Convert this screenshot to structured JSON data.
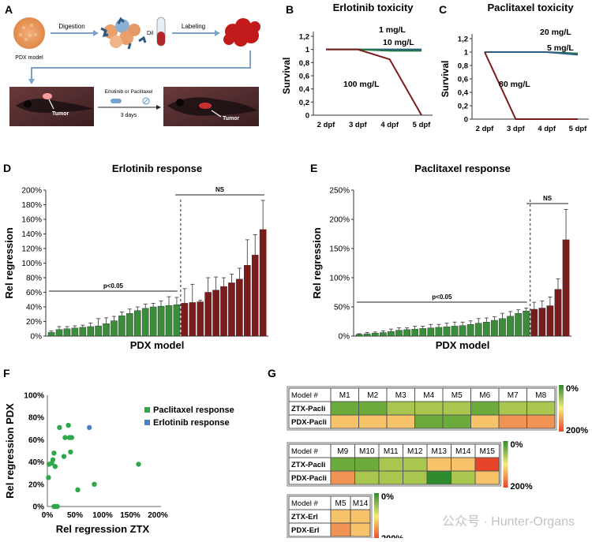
{
  "panels": {
    "A": {
      "label": "A",
      "pdx_model": "PDX model",
      "digestion": "Digestion",
      "dil": "DiI",
      "labeling": "Labeling",
      "treatment": "Erlotinib or Paclitaxel",
      "duration": "3 days",
      "tumor_left": "Tumor",
      "tumor_right": "Tumor"
    },
    "B": {
      "label": "B"
    },
    "C": {
      "label": "C"
    },
    "D": {
      "label": "D"
    },
    "E": {
      "label": "E"
    },
    "F": {
      "label": "F"
    },
    "G": {
      "label": "G"
    }
  },
  "colors": {
    "green": "#3a8e3a",
    "red": "#7b1c1c",
    "darkgreen": "#1f7a3f",
    "blue": "#4a7fc0"
  },
  "chart_data": [
    {
      "id": "B",
      "type": "line",
      "title": "Erlotinib toxicity",
      "xlabel": "",
      "ylabel": "Survival",
      "categories": [
        "2 dpf",
        "3 dpf",
        "4 dpf",
        "5 dpf"
      ],
      "yticks": [
        "0",
        "0,2",
        "0,4",
        "0,6",
        "0,8",
        "1",
        "1,2"
      ],
      "ylim": [
        0,
        1.2
      ],
      "series": [
        {
          "name": "1 mg/L",
          "values": [
            1,
            1,
            1,
            1
          ]
        },
        {
          "name": "10 mg/L",
          "values": [
            1,
            1,
            0.98,
            0.98
          ]
        },
        {
          "name": "100 mg/L",
          "values": [
            1,
            1,
            0.85,
            0
          ]
        }
      ]
    },
    {
      "id": "C",
      "type": "line",
      "title": "Paclitaxel toxicity",
      "xlabel": "",
      "ylabel": "Survival",
      "categories": [
        "2 dpf",
        "3 dpf",
        "4 dpf",
        "5 dpf"
      ],
      "yticks": [
        "0",
        "0,2",
        "0,4",
        "0,6",
        "0,8",
        "1",
        "1,2"
      ],
      "ylim": [
        0,
        1.2
      ],
      "series": [
        {
          "name": "20 mg/L",
          "values": [
            1,
            1,
            1,
            0.98
          ]
        },
        {
          "name": "5 mg/L",
          "values": [
            1,
            1,
            1,
            0.96
          ]
        },
        {
          "name": "80 mg/L",
          "values": [
            1,
            0,
            0,
            0
          ]
        }
      ]
    },
    {
      "id": "D",
      "type": "bar",
      "title": "Erlotinib response",
      "xlabel": "PDX model",
      "ylabel": "Rel regression",
      "yticks": [
        "0%",
        "20%",
        "40%",
        "60%",
        "80%",
        "100%",
        "120%",
        "140%",
        "160%",
        "180%",
        "200%"
      ],
      "ylim": [
        0,
        200
      ],
      "values": [
        5,
        9,
        10,
        11,
        12,
        13,
        14,
        17,
        21,
        28,
        31,
        35,
        38,
        40,
        41,
        42,
        43,
        45,
        46,
        47,
        60,
        63,
        68,
        73,
        78,
        97,
        111,
        146
      ],
      "errors": [
        2,
        4,
        3,
        3,
        3,
        5,
        10,
        8,
        6,
        5,
        6,
        5,
        6,
        5,
        7,
        12,
        10,
        20,
        25,
        2,
        20,
        18,
        12,
        12,
        15,
        35,
        28,
        40
      ],
      "sensitive_count": 17,
      "annotations": [
        "p<0.05",
        "NS"
      ]
    },
    {
      "id": "E",
      "type": "bar",
      "title": "Paclitaxel response",
      "xlabel": "PDX model",
      "ylabel": "Rel regression",
      "yticks": [
        "0%",
        "50%",
        "100%",
        "150%",
        "200%",
        "250%"
      ],
      "ylim": [
        0,
        250
      ],
      "values": [
        3,
        4,
        5,
        6,
        8,
        10,
        11,
        12,
        13,
        14,
        15,
        16,
        17,
        18,
        20,
        22,
        24,
        27,
        30,
        34,
        39,
        43,
        46,
        48,
        52,
        80,
        165
      ],
      "errors": [
        1,
        2,
        2,
        3,
        4,
        4,
        3,
        5,
        4,
        6,
        5,
        6,
        7,
        6,
        6,
        8,
        7,
        6,
        9,
        8,
        6,
        5,
        12,
        12,
        15,
        18,
        52
      ],
      "sensitive_count": 22,
      "annotations": [
        "p<0.05",
        "NS"
      ]
    },
    {
      "id": "F",
      "type": "scatter",
      "xlabel": "Rel regression ZTX",
      "ylabel": "Rel regression PDX",
      "xticks": [
        "0%",
        "50%",
        "100%",
        "150%",
        "200%"
      ],
      "yticks": [
        "0%",
        "20%",
        "40%",
        "60%",
        "80%",
        "100%"
      ],
      "xlim": [
        0,
        200
      ],
      "ylim": [
        0,
        100
      ],
      "series": [
        {
          "name": "Paclitaxel response",
          "points": [
            [
              2,
              26
            ],
            [
              3,
              38
            ],
            [
              8,
              39
            ],
            [
              10,
              42
            ],
            [
              12,
              48
            ],
            [
              12,
              0
            ],
            [
              14,
              36
            ],
            [
              15,
              0
            ],
            [
              18,
              0
            ],
            [
              22,
              71
            ],
            [
              30,
              45
            ],
            [
              32,
              62
            ],
            [
              38,
              73
            ],
            [
              40,
              62
            ],
            [
              42,
              49
            ],
            [
              44,
              62
            ],
            [
              55,
              15
            ],
            [
              85,
              20
            ],
            [
              165,
              38
            ]
          ]
        },
        {
          "name": "Erlotinib response",
          "points": [
            [
              76,
              71
            ]
          ]
        }
      ]
    },
    {
      "id": "G",
      "type": "heatmap",
      "legend_labels": [
        "0%",
        "200%"
      ],
      "tables": [
        {
          "header": "Model #",
          "cols": [
            "M1",
            "M2",
            "M3",
            "M4",
            "M5",
            "M6",
            "M7",
            "M8"
          ],
          "rows": [
            {
              "name": "ZTX-Pacli",
              "values": [
                20,
                40,
                45,
                45,
                45,
                40,
                50,
                55
              ]
            },
            {
              "name": "PDX-Pacli",
              "values": [
                130,
                130,
                130,
                30,
                30,
                150,
                160,
                170
              ]
            }
          ]
        },
        {
          "header": "Model #",
          "cols": [
            "M9",
            "M10",
            "M11",
            "M12",
            "M13",
            "M14",
            "M15"
          ],
          "rows": [
            {
              "name": "ZTX-Pacli",
              "values": [
                25,
                30,
                60,
                50,
                130,
                130,
                195
              ]
            },
            {
              "name": "PDX-Pacli",
              "values": [
                160,
                50,
                50,
                60,
                10,
                55,
                140
              ]
            }
          ]
        },
        {
          "header": "Model #",
          "cols": [
            "M5",
            "M14"
          ],
          "rows": [
            {
              "name": "ZTX-Erl",
              "values": [
                140,
                130
              ]
            },
            {
              "name": "PDX-Erl",
              "values": [
                160,
                145
              ]
            }
          ]
        }
      ]
    }
  ],
  "watermark": "公众号 · Hunter-Organs"
}
